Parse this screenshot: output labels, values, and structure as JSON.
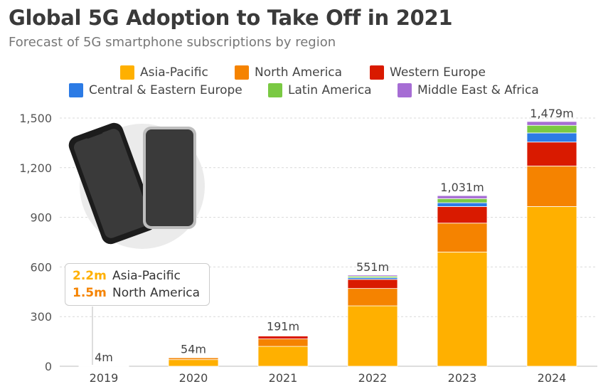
{
  "header": {
    "title": "Global 5G Adoption to Take Off in 2021",
    "subtitle": "Forecast of 5G smartphone subscriptions by region"
  },
  "colors": {
    "asia_pacific": "#FFB000",
    "north_america": "#F58300",
    "western_europe": "#D91A00",
    "central_eastern_europe": "#2C7BE5",
    "latin_america": "#7AC943",
    "middle_east_africa": "#A66DD4"
  },
  "legend": [
    {
      "label": "Asia-Pacific",
      "color": "#FFB000"
    },
    {
      "label": "North America",
      "color": "#F58300"
    },
    {
      "label": "Western Europe",
      "color": "#D91A00"
    },
    {
      "label": "Central & Eastern Europe",
      "color": "#2C7BE5"
    },
    {
      "label": "Latin America",
      "color": "#7AC943"
    },
    {
      "label": "Middle East & Africa",
      "color": "#A66DD4"
    }
  ],
  "annotation": {
    "rows": [
      {
        "value": "2.2m",
        "label": "Asia-Pacific",
        "color": "#FFB000"
      },
      {
        "value": "1.5m",
        "label": "North America",
        "color": "#F58300"
      }
    ]
  },
  "illustration": {
    "icon": "smartphones-icon"
  },
  "chart_data": {
    "type": "bar",
    "stacked": true,
    "categories": [
      "2019",
      "2020",
      "2021",
      "2022",
      "2023",
      "2024"
    ],
    "series": [
      {
        "name": "Asia-Pacific",
        "color": "#FFB000",
        "values": [
          2.2,
          40,
          120,
          365,
          690,
          965
        ]
      },
      {
        "name": "North America",
        "color": "#F58300",
        "values": [
          1.5,
          12,
          45,
          105,
          175,
          245
        ]
      },
      {
        "name": "Western Europe",
        "color": "#D91A00",
        "values": [
          0.2,
          1.5,
          18,
          55,
          100,
          145
        ]
      },
      {
        "name": "Central & Eastern Europe",
        "color": "#2C7BE5",
        "values": [
          0,
          0.3,
          3,
          10,
          23,
          55
        ]
      },
      {
        "name": "Latin America",
        "color": "#7AC943",
        "values": [
          0.1,
          0.2,
          3,
          9,
          25,
          46
        ]
      },
      {
        "name": "Middle East & Africa",
        "color": "#A66DD4",
        "values": [
          0,
          0,
          2,
          7,
          18,
          23
        ]
      }
    ],
    "totals": [
      4,
      54,
      191,
      551,
      1031,
      1479
    ],
    "total_labels": [
      "4m",
      "54m",
      "191m",
      "551m",
      "1,031m",
      "1,479m"
    ],
    "yticks": [
      0,
      300,
      600,
      900,
      1200,
      1500
    ],
    "ytick_labels": [
      "0",
      "300",
      "600",
      "900",
      "1,200",
      "1,500"
    ],
    "ylim": [
      0,
      1500
    ],
    "grid": true,
    "legend_position": "top"
  }
}
